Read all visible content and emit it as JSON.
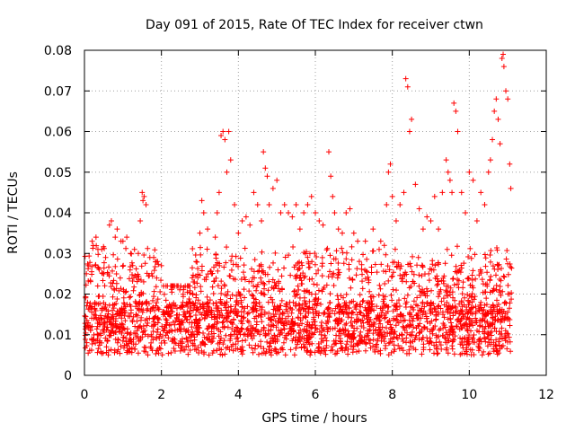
{
  "chart_data": {
    "type": "scatter",
    "title": "Day 091 of 2015, Rate Of TEC Index for receiver ctwn",
    "xlabel": "GPS time / hours",
    "ylabel": "ROTI / TECUs",
    "xlim": [
      0,
      12
    ],
    "ylim": [
      0,
      0.08
    ],
    "xticks": [
      0,
      2,
      4,
      6,
      8,
      10,
      12
    ],
    "xtick_labels": [
      "0",
      "2",
      "4",
      "6",
      "8",
      "10",
      "12"
    ],
    "yticks": [
      0,
      0.01,
      0.02,
      0.03,
      0.04,
      0.05,
      0.06,
      0.07,
      0.08
    ],
    "ytick_labels": [
      "0",
      "0.01",
      "0.02",
      "0.03",
      "0.04",
      "0.05",
      "0.06",
      "0.07",
      "0.08"
    ],
    "grid": true,
    "marker": "plus",
    "marker_color": "#ff0000",
    "data_extent": [
      0.0,
      11.1
    ],
    "series": [
      {
        "name": "ROTI",
        "points": [
          [
            0.05,
            0.025
          ],
          [
            0.1,
            0.027
          ],
          [
            0.2,
            0.033
          ],
          [
            0.3,
            0.034
          ],
          [
            0.35,
            0.031
          ],
          [
            0.45,
            0.031
          ],
          [
            0.55,
            0.029
          ],
          [
            0.65,
            0.037
          ],
          [
            0.7,
            0.038
          ],
          [
            0.8,
            0.034
          ],
          [
            0.85,
            0.036
          ],
          [
            0.95,
            0.033
          ],
          [
            1.0,
            0.033
          ],
          [
            1.1,
            0.034
          ],
          [
            1.2,
            0.03
          ],
          [
            1.3,
            0.031
          ],
          [
            1.4,
            0.03
          ],
          [
            1.45,
            0.038
          ],
          [
            1.5,
            0.045
          ],
          [
            1.52,
            0.043
          ],
          [
            1.55,
            0.044
          ],
          [
            1.6,
            0.042
          ],
          [
            1.7,
            0.029
          ],
          [
            1.8,
            0.029
          ],
          [
            1.9,
            0.028
          ],
          [
            2.0,
            0.027
          ],
          [
            2.3,
            0.022
          ],
          [
            2.5,
            0.022
          ],
          [
            2.8,
            0.024
          ],
          [
            2.9,
            0.028
          ],
          [
            3.0,
            0.035
          ],
          [
            3.05,
            0.043
          ],
          [
            3.1,
            0.04
          ],
          [
            3.2,
            0.036
          ],
          [
            3.3,
            0.025
          ],
          [
            3.4,
            0.034
          ],
          [
            3.45,
            0.04
          ],
          [
            3.5,
            0.045
          ],
          [
            3.55,
            0.059
          ],
          [
            3.6,
            0.06
          ],
          [
            3.65,
            0.058
          ],
          [
            3.7,
            0.05
          ],
          [
            3.75,
            0.06
          ],
          [
            3.8,
            0.053
          ],
          [
            3.9,
            0.042
          ],
          [
            4.0,
            0.035
          ],
          [
            4.1,
            0.038
          ],
          [
            4.2,
            0.039
          ],
          [
            4.3,
            0.037
          ],
          [
            4.4,
            0.045
          ],
          [
            4.5,
            0.042
          ],
          [
            4.6,
            0.038
          ],
          [
            4.65,
            0.055
          ],
          [
            4.7,
            0.051
          ],
          [
            4.75,
            0.049
          ],
          [
            4.8,
            0.042
          ],
          [
            4.9,
            0.046
          ],
          [
            5.0,
            0.048
          ],
          [
            5.1,
            0.04
          ],
          [
            5.2,
            0.042
          ],
          [
            5.3,
            0.04
          ],
          [
            5.4,
            0.039
          ],
          [
            5.5,
            0.042
          ],
          [
            5.6,
            0.036
          ],
          [
            5.7,
            0.04
          ],
          [
            5.8,
            0.042
          ],
          [
            5.9,
            0.044
          ],
          [
            6.0,
            0.04
          ],
          [
            6.1,
            0.038
          ],
          [
            6.2,
            0.037
          ],
          [
            6.35,
            0.055
          ],
          [
            6.4,
            0.049
          ],
          [
            6.45,
            0.044
          ],
          [
            6.5,
            0.04
          ],
          [
            6.6,
            0.036
          ],
          [
            6.7,
            0.035
          ],
          [
            6.8,
            0.04
          ],
          [
            6.9,
            0.041
          ],
          [
            7.0,
            0.035
          ],
          [
            7.1,
            0.033
          ],
          [
            7.3,
            0.033
          ],
          [
            7.5,
            0.036
          ],
          [
            7.7,
            0.033
          ],
          [
            7.85,
            0.042
          ],
          [
            7.9,
            0.05
          ],
          [
            7.95,
            0.052
          ],
          [
            8.0,
            0.044
          ],
          [
            8.1,
            0.038
          ],
          [
            8.2,
            0.042
          ],
          [
            8.3,
            0.045
          ],
          [
            8.35,
            0.073
          ],
          [
            8.4,
            0.071
          ],
          [
            8.45,
            0.06
          ],
          [
            8.5,
            0.063
          ],
          [
            8.6,
            0.047
          ],
          [
            8.7,
            0.041
          ],
          [
            8.8,
            0.036
          ],
          [
            8.9,
            0.039
          ],
          [
            9.0,
            0.038
          ],
          [
            9.1,
            0.044
          ],
          [
            9.2,
            0.036
          ],
          [
            9.3,
            0.045
          ],
          [
            9.4,
            0.053
          ],
          [
            9.45,
            0.05
          ],
          [
            9.5,
            0.048
          ],
          [
            9.55,
            0.045
          ],
          [
            9.6,
            0.067
          ],
          [
            9.65,
            0.065
          ],
          [
            9.7,
            0.06
          ],
          [
            9.8,
            0.045
          ],
          [
            9.9,
            0.04
          ],
          [
            10.0,
            0.05
          ],
          [
            10.1,
            0.048
          ],
          [
            10.2,
            0.038
          ],
          [
            10.3,
            0.045
          ],
          [
            10.4,
            0.042
          ],
          [
            10.5,
            0.05
          ],
          [
            10.55,
            0.053
          ],
          [
            10.6,
            0.058
          ],
          [
            10.65,
            0.065
          ],
          [
            10.7,
            0.068
          ],
          [
            10.75,
            0.063
          ],
          [
            10.8,
            0.057
          ],
          [
            10.85,
            0.078
          ],
          [
            10.88,
            0.079
          ],
          [
            10.9,
            0.076
          ],
          [
            10.95,
            0.07
          ],
          [
            11.0,
            0.068
          ],
          [
            11.05,
            0.052
          ],
          [
            11.08,
            0.046
          ]
        ]
      }
    ]
  }
}
